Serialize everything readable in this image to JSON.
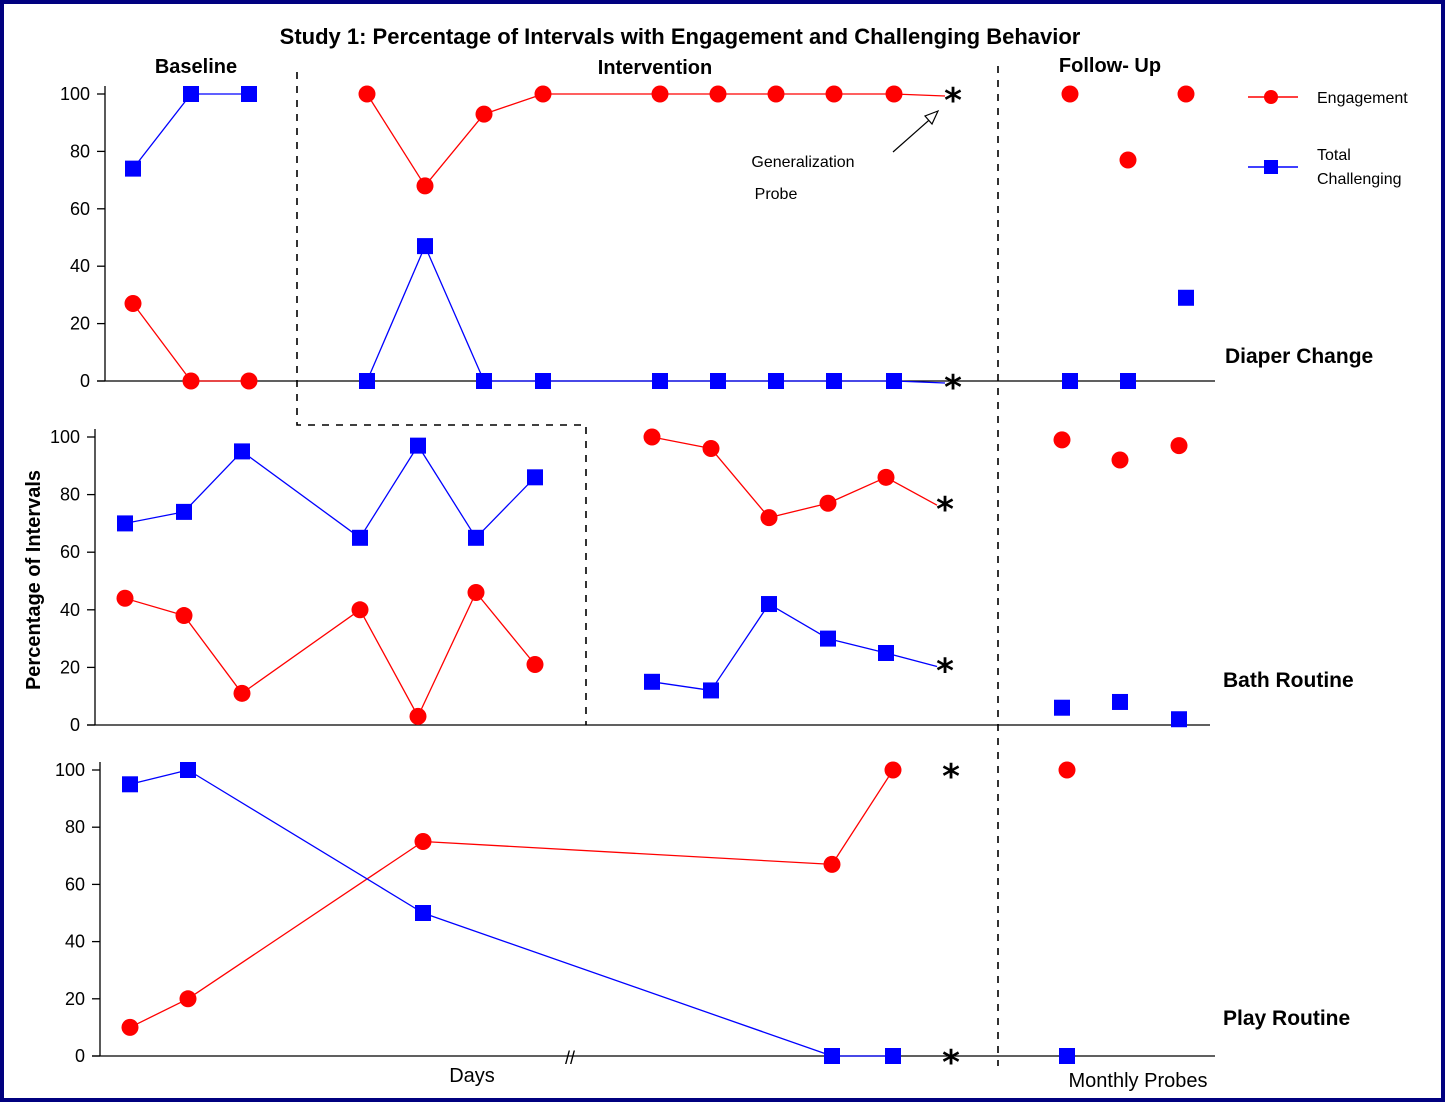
{
  "chart_data": {
    "type": "line",
    "title": "Study 1: Percentage of Intervals with Engagement and Challenging Behavior",
    "ylabel": "Percentage of Intervals",
    "xlabel": "Days",
    "xlabel_followup": "Monthly Probes",
    "axis_break": "//",
    "ylim": [
      0,
      100
    ],
    "yticks": [
      "0",
      "20",
      "40",
      "60",
      "80",
      "100"
    ],
    "phases": [
      "Baseline",
      "Intervention",
      "Follow- Up"
    ],
    "legend": {
      "position": "top-right",
      "entries": [
        {
          "name": "Engagement",
          "color": "#ff0000",
          "marker": "circle"
        },
        {
          "name": "Total\nChallenging",
          "color": "#0000ff",
          "marker": "square"
        }
      ]
    },
    "annotation": {
      "text_line1": "Generalization",
      "text_line2": "Probe",
      "marker": "*"
    },
    "panels": [
      {
        "name": "Diaper Change",
        "phase_change_after_session": 4.5,
        "series": [
          {
            "name": "Engagement",
            "points": [
              {
                "x": 1,
                "y": 27
              },
              {
                "x": 2,
                "y": 0
              },
              {
                "x": 3,
                "y": 0
              },
              {
                "x": 5,
                "y": 100
              },
              {
                "x": 6,
                "y": 68
              },
              {
                "x": 7,
                "y": 93
              },
              {
                "x": 8,
                "y": 100
              },
              {
                "x": 10,
                "y": 100
              },
              {
                "x": 11,
                "y": 100
              },
              {
                "x": 12,
                "y": 100
              },
              {
                "x": 13,
                "y": 100
              },
              {
                "x": 14,
                "y": 100
              },
              {
                "x": "F1",
                "y": 100
              },
              {
                "x": "F2",
                "y": 77
              },
              {
                "x": "F3",
                "y": 100
              }
            ],
            "probe": 100
          },
          {
            "name": "Total Challenging",
            "points": [
              {
                "x": 1,
                "y": 74
              },
              {
                "x": 2,
                "y": 100
              },
              {
                "x": 3,
                "y": 100
              },
              {
                "x": 5,
                "y": 0
              },
              {
                "x": 6,
                "y": 47
              },
              {
                "x": 7,
                "y": 0
              },
              {
                "x": 8,
                "y": 0
              },
              {
                "x": 10,
                "y": 0
              },
              {
                "x": 11,
                "y": 0
              },
              {
                "x": 12,
                "y": 0
              },
              {
                "x": 13,
                "y": 0
              },
              {
                "x": 14,
                "y": 0
              },
              {
                "x": "F1",
                "y": 0
              },
              {
                "x": "F2",
                "y": 0
              },
              {
                "x": "F3",
                "y": 29
              }
            ],
            "probe": 0
          }
        ]
      },
      {
        "name": "Bath Routine",
        "phase_change_after_session": 8.75,
        "series": [
          {
            "name": "Engagement",
            "points": [
              {
                "x": 1,
                "y": 44
              },
              {
                "x": 2,
                "y": 38
              },
              {
                "x": 3,
                "y": 11
              },
              {
                "x": 5,
                "y": 40
              },
              {
                "x": 6,
                "y": 3
              },
              {
                "x": 7,
                "y": 46
              },
              {
                "x": 8,
                "y": 21
              },
              {
                "x": 10,
                "y": 100
              },
              {
                "x": 11,
                "y": 96
              },
              {
                "x": 12,
                "y": 72
              },
              {
                "x": 13,
                "y": 77
              },
              {
                "x": 14,
                "y": 86
              },
              {
                "x": "F1",
                "y": 99
              },
              {
                "x": "F2",
                "y": 92
              },
              {
                "x": "F3",
                "y": 97
              }
            ],
            "probe": 77
          },
          {
            "name": "Total Challenging",
            "points": [
              {
                "x": 1,
                "y": 70
              },
              {
                "x": 2,
                "y": 74
              },
              {
                "x": 3,
                "y": 95
              },
              {
                "x": 5,
                "y": 65
              },
              {
                "x": 6,
                "y": 97
              },
              {
                "x": 7,
                "y": 65
              },
              {
                "x": 8,
                "y": 86
              },
              {
                "x": 10,
                "y": 15
              },
              {
                "x": 11,
                "y": 12
              },
              {
                "x": 12,
                "y": 42
              },
              {
                "x": 13,
                "y": 30
              },
              {
                "x": 14,
                "y": 25
              },
              {
                "x": "F1",
                "y": 6
              },
              {
                "x": "F2",
                "y": 8
              },
              {
                "x": "F3",
                "y": 2
              }
            ],
            "probe": 21
          }
        ]
      },
      {
        "name": "Play Routine",
        "phase_change_after_session": 14.5,
        "series": [
          {
            "name": "Engagement",
            "points": [
              {
                "x": 1,
                "y": 10
              },
              {
                "x": 2,
                "y": 20
              },
              {
                "x": 6,
                "y": 75
              },
              {
                "x": 13,
                "y": 67
              },
              {
                "x": 14,
                "y": 100
              },
              {
                "x": "F1",
                "y": 100
              }
            ],
            "probe": 100
          },
          {
            "name": "Total Challenging",
            "points": [
              {
                "x": 1,
                "y": 95
              },
              {
                "x": 2,
                "y": 100
              },
              {
                "x": 6,
                "y": 50
              },
              {
                "x": 13,
                "y": 0
              },
              {
                "x": 14,
                "y": 0
              },
              {
                "x": "F1",
                "y": 0
              }
            ],
            "probe": 0
          }
        ]
      }
    ],
    "colors": {
      "engagement": "#ff0000",
      "challenging": "#0000ff",
      "axis": "#000000"
    }
  }
}
